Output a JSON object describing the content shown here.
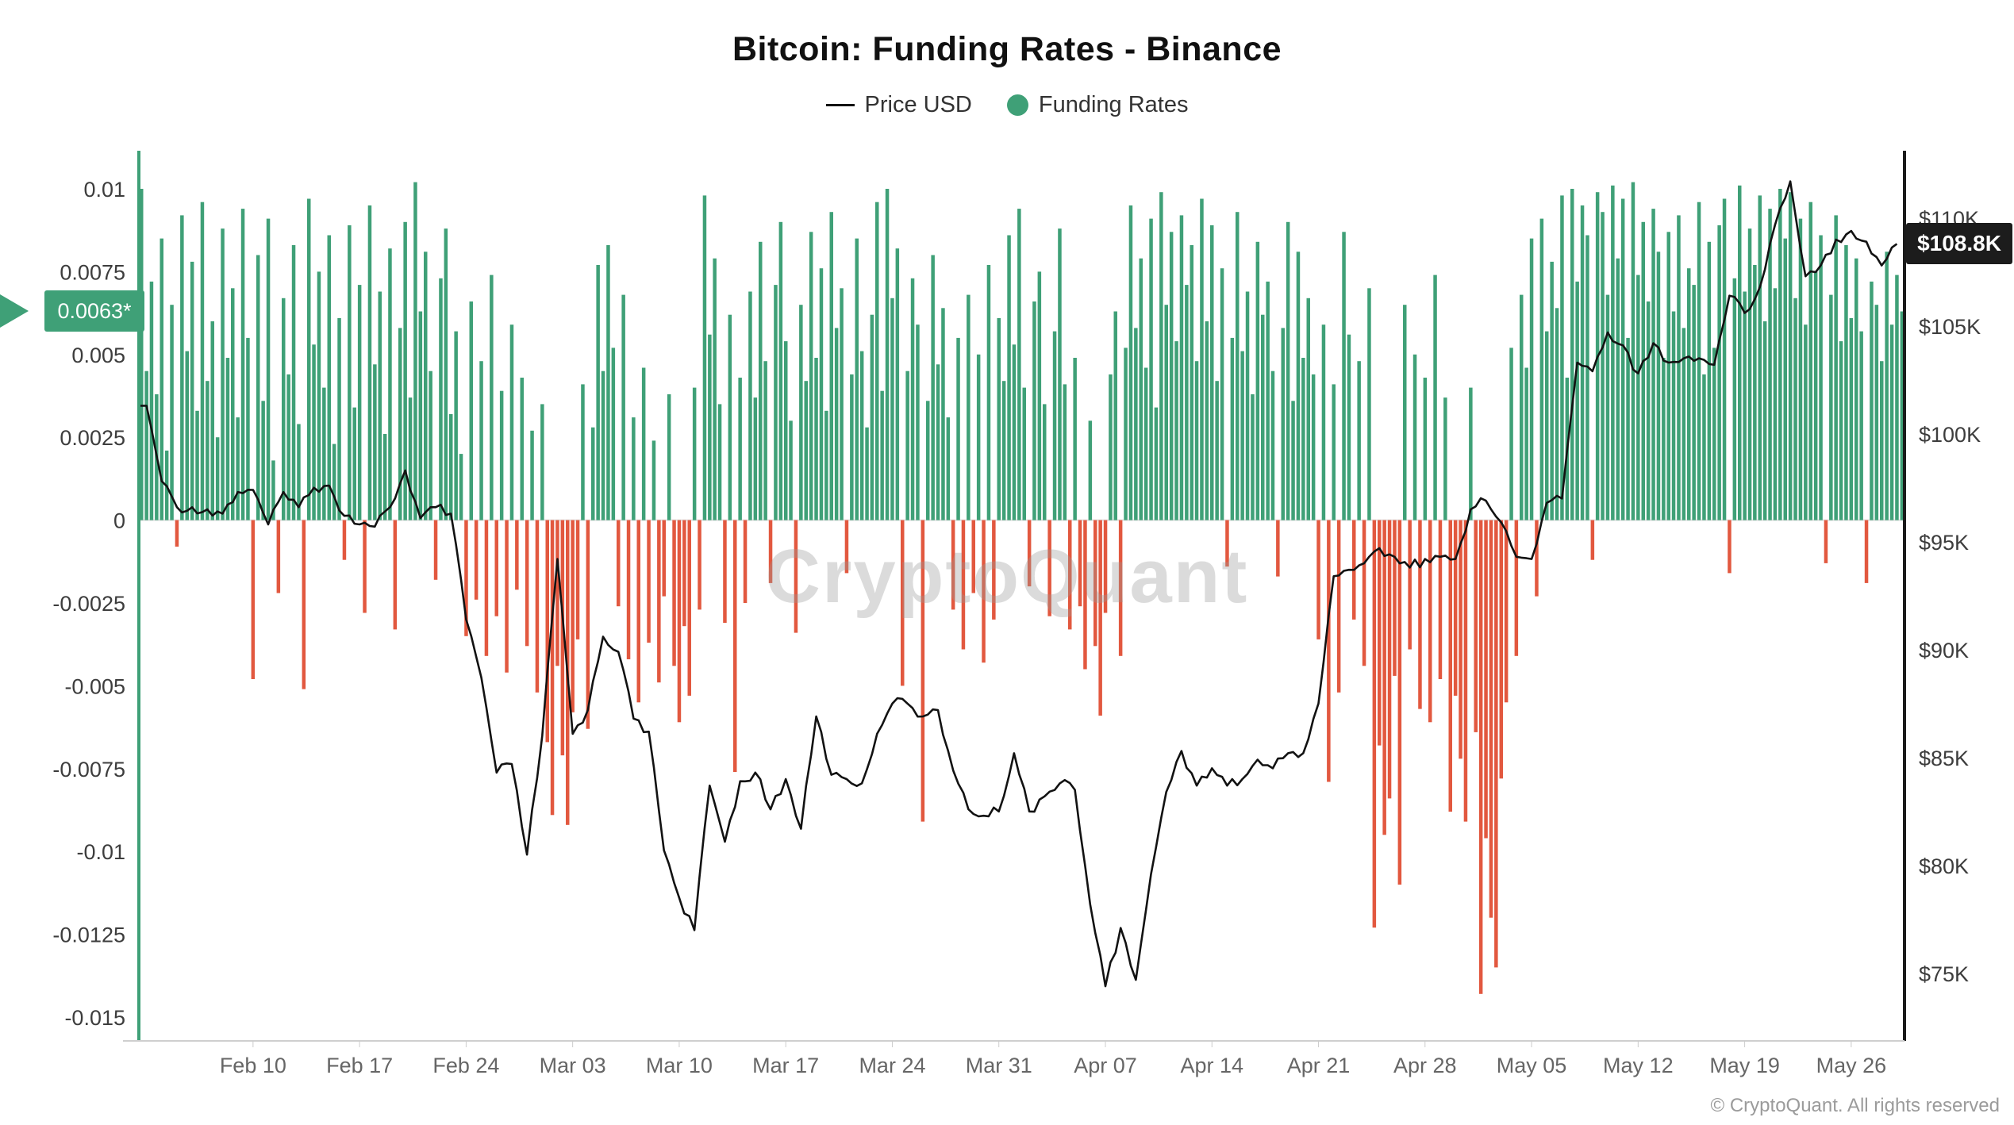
{
  "title": "Bitcoin: Funding Rates - Binance",
  "legend": {
    "price_label": "Price USD",
    "funding_label": "Funding Rates"
  },
  "badges": {
    "funding_current": "0.0063*",
    "price_current": "$108.8K"
  },
  "watermark": "CryptoQuant",
  "footer": "© CryptoQuant. All rights reserved",
  "colors": {
    "funding_positive": "#3FA077",
    "funding_negative": "#E2583F",
    "price_line": "#121212",
    "funding_badge_bg": "#3FA077",
    "price_badge_bg": "#1C1C1C"
  },
  "chart_data": {
    "type": "bar+line",
    "title": "Bitcoin: Funding Rates - Binance",
    "x_start": "Feb 03",
    "x_end": "May 29",
    "days": 116,
    "grid": "off",
    "legend_position": "top-center",
    "x_tick_labels": [
      "Feb 10",
      "Feb 17",
      "Feb 24",
      "Mar 03",
      "Mar 10",
      "Mar 17",
      "Mar 24",
      "Mar 31",
      "Apr 07",
      "Apr 14",
      "Apr 21",
      "Apr 28",
      "May 05",
      "May 12",
      "May 19",
      "May 26"
    ],
    "x_tick_days": [
      7,
      14,
      21,
      28,
      35,
      42,
      49,
      56,
      63,
      70,
      77,
      84,
      91,
      98,
      105,
      112
    ],
    "left_axis": {
      "label": "Funding Rates",
      "min": -0.015,
      "max": 0.01,
      "ticks": [
        "0.01",
        "0.0075",
        "0.005",
        "0.0025",
        "0",
        "-0.0025",
        "-0.005",
        "-0.0075",
        "-0.01",
        "-0.0125",
        "-0.015"
      ],
      "tick_values": [
        0.01,
        0.0075,
        0.005,
        0.0025,
        0,
        -0.0025,
        -0.005,
        -0.0075,
        -0.01,
        -0.0125,
        -0.015
      ],
      "current_marker": 0.0063
    },
    "right_axis": {
      "label": "Price USD",
      "min": 75,
      "max": 110,
      "unit": "$K",
      "ticks": [
        "$110K",
        "$105K",
        "$100K",
        "$95K",
        "$90K",
        "$85K",
        "$80K",
        "$75K"
      ],
      "tick_values": [
        110,
        105,
        100,
        95,
        90,
        85,
        80,
        75
      ],
      "current_marker": 108.8
    },
    "series": [
      {
        "name": "Funding Rates",
        "type": "bar",
        "bars_per_day": 3,
        "positive_color": "#3FA077",
        "negative_color": "#E2583F",
        "current": 0.0063,
        "values": [
          0.01,
          0.0045,
          0.0072,
          0.0038,
          0.0085,
          0.0021,
          0.0065,
          -0.0008,
          0.0092,
          0.0051,
          0.0078,
          0.0033,
          0.0096,
          0.0042,
          0.006,
          0.0025,
          0.0088,
          0.0049,
          0.007,
          0.0031,
          0.0094,
          0.0055,
          -0.0048,
          0.008,
          0.0036,
          0.0091,
          0.0018,
          -0.0022,
          0.0067,
          0.0044,
          0.0083,
          0.0029,
          -0.0051,
          0.0097,
          0.0053,
          0.0075,
          0.004,
          0.0086,
          0.0023,
          0.0061,
          -0.0012,
          0.0089,
          0.0034,
          0.0071,
          -0.0028,
          0.0095,
          0.0047,
          0.0069,
          0.0026,
          0.0082,
          -0.0033,
          0.0058,
          0.009,
          0.0037,
          0.0102,
          0.0063,
          0.0081,
          0.0045,
          -0.0018,
          0.0073,
          0.0088,
          0.0032,
          0.0057,
          0.002,
          -0.0035,
          0.0066,
          -0.0024,
          0.0048,
          -0.0041,
          0.0074,
          -0.0029,
          0.0039,
          -0.0046,
          0.0059,
          -0.0021,
          0.0043,
          -0.0038,
          0.0027,
          -0.0052,
          0.0035,
          -0.0067,
          -0.0089,
          -0.0044,
          -0.0071,
          -0.0092,
          -0.0058,
          -0.0036,
          0.0041,
          -0.0063,
          0.0028,
          0.0077,
          0.0045,
          0.0083,
          0.0052,
          -0.0026,
          0.0068,
          -0.0042,
          0.0031,
          -0.0055,
          0.0046,
          -0.0037,
          0.0024,
          -0.0049,
          -0.0023,
          0.0038,
          -0.0044,
          -0.0061,
          -0.0032,
          -0.0053,
          0.004,
          -0.0027,
          0.0098,
          0.0056,
          0.0079,
          0.0035,
          -0.0031,
          0.0062,
          -0.0076,
          0.0043,
          -0.0025,
          0.0069,
          0.0037,
          0.0084,
          0.0048,
          -0.0019,
          0.0071,
          0.009,
          0.0054,
          0.003,
          -0.0034,
          0.0065,
          0.0042,
          0.0087,
          0.0049,
          0.0076,
          0.0033,
          0.0093,
          0.0058,
          0.007,
          -0.0016,
          0.0044,
          0.0085,
          0.0051,
          0.0028,
          0.0062,
          0.0096,
          0.0039,
          0.01,
          0.0067,
          0.0082,
          -0.005,
          0.0045,
          0.0073,
          0.0059,
          -0.0091,
          0.0036,
          0.008,
          0.0047,
          0.0064,
          0.0031,
          -0.0027,
          0.0055,
          -0.0039,
          0.0068,
          -0.0022,
          0.005,
          -0.0043,
          0.0077,
          -0.003,
          0.0061,
          0.0042,
          0.0086,
          0.0053,
          0.0094,
          0.004,
          -0.002,
          0.0066,
          0.0075,
          0.0035,
          -0.0029,
          0.0057,
          0.0088,
          0.0041,
          -0.0033,
          0.0049,
          -0.0026,
          -0.0045,
          0.003,
          -0.0038,
          -0.0059,
          -0.0028,
          0.0044,
          0.0063,
          -0.0041,
          0.0052,
          0.0095,
          0.0058,
          0.0079,
          0.0046,
          0.0091,
          0.0034,
          0.0099,
          0.0065,
          0.0087,
          0.0054,
          0.0092,
          0.0071,
          0.0083,
          0.0048,
          0.0097,
          0.006,
          0.0089,
          0.0042,
          0.0076,
          -0.0014,
          0.0055,
          0.0093,
          0.0051,
          0.0069,
          0.0038,
          0.0084,
          0.0062,
          0.0072,
          0.0045,
          -0.0017,
          0.0058,
          0.009,
          0.0036,
          0.0081,
          0.0049,
          0.0067,
          0.0044,
          -0.0036,
          0.0059,
          -0.0079,
          0.0041,
          -0.0052,
          0.0087,
          0.0056,
          -0.003,
          0.0048,
          -0.0044,
          0.007,
          -0.0123,
          -0.0068,
          -0.0095,
          -0.0084,
          -0.0047,
          -0.011,
          0.0065,
          -0.0039,
          0.005,
          -0.0057,
          0.0043,
          -0.0061,
          0.0074,
          -0.0048,
          0.0037,
          -0.0088,
          -0.0053,
          -0.0072,
          -0.0091,
          0.004,
          -0.0064,
          -0.0143,
          -0.0096,
          -0.012,
          -0.0135,
          -0.0078,
          -0.0055,
          0.0052,
          -0.0041,
          0.0068,
          0.0046,
          0.0085,
          -0.0023,
          0.0091,
          0.0057,
          0.0078,
          0.0064,
          0.0098,
          0.0043,
          0.01,
          0.0072,
          0.0095,
          0.0086,
          -0.0012,
          0.0099,
          0.0093,
          0.0068,
          0.0101,
          0.0079,
          0.0097,
          0.0055,
          0.0102,
          0.0074,
          0.009,
          0.0066,
          0.0094,
          0.0081,
          0.0049,
          0.0087,
          0.0063,
          0.0092,
          0.0058,
          0.0076,
          0.0071,
          0.0096,
          0.0044,
          0.0084,
          0.0052,
          0.0089,
          0.0097,
          -0.0016,
          0.0073,
          0.0101,
          0.0069,
          0.0088,
          0.0077,
          0.0098,
          0.006,
          0.0094,
          0.007,
          0.01,
          0.0085,
          0.0099,
          0.0067,
          0.0091,
          0.0059,
          0.0096,
          0.0075,
          0.0086,
          -0.0013,
          0.0068,
          0.0092,
          0.0054,
          0.0083,
          0.0061,
          0.0079,
          0.0057,
          -0.0019,
          0.0072,
          0.0065,
          0.0048,
          0.0081,
          0.0059,
          0.0074,
          0.0063
        ]
      },
      {
        "name": "Price USD",
        "type": "line",
        "color": "#121212",
        "unit": "USD thousands",
        "points_per_day": 1,
        "current": 108.8,
        "values": [
          101.3,
          97.8,
          96.6,
          96.6,
          96.5,
          96.3,
          97.3,
          97.4,
          95.8,
          97.3,
          96.6,
          97.5,
          97.6,
          96.2,
          95.8,
          95.7,
          96.6,
          98.3,
          96.1,
          96.6,
          96.3,
          91.4,
          88.7,
          84.3,
          84.7,
          80.5,
          86.0,
          94.2,
          86.1,
          87.2,
          90.6,
          89.9,
          86.8,
          86.2,
          80.7,
          78.5,
          77.0,
          83.7,
          81.1,
          83.9,
          84.3,
          82.6,
          84.0,
          81.7,
          86.9,
          84.2,
          84.0,
          83.8,
          86.1,
          87.5,
          87.5,
          86.9,
          87.2,
          84.4,
          82.6,
          82.3,
          82.5,
          85.2,
          82.5,
          83.2,
          83.8,
          83.5,
          78.2,
          74.4,
          77.1,
          74.7,
          79.6,
          83.4,
          85.3,
          83.7,
          84.5,
          83.7,
          84.0,
          84.9,
          84.5,
          85.2,
          85.2,
          87.5,
          93.4,
          93.7,
          94.0,
          94.7,
          94.3,
          93.8,
          94.2,
          94.3,
          94.2,
          96.5,
          96.9,
          95.9,
          94.3,
          94.2,
          96.8,
          97.0,
          103.3,
          102.9,
          104.7,
          104.1,
          102.8,
          104.2,
          103.3,
          103.5,
          103.5,
          103.2,
          106.4,
          105.6,
          106.8,
          109.7,
          111.7,
          107.3,
          107.8,
          109.0,
          109.4,
          108.9,
          107.8,
          108.8
        ]
      }
    ]
  }
}
